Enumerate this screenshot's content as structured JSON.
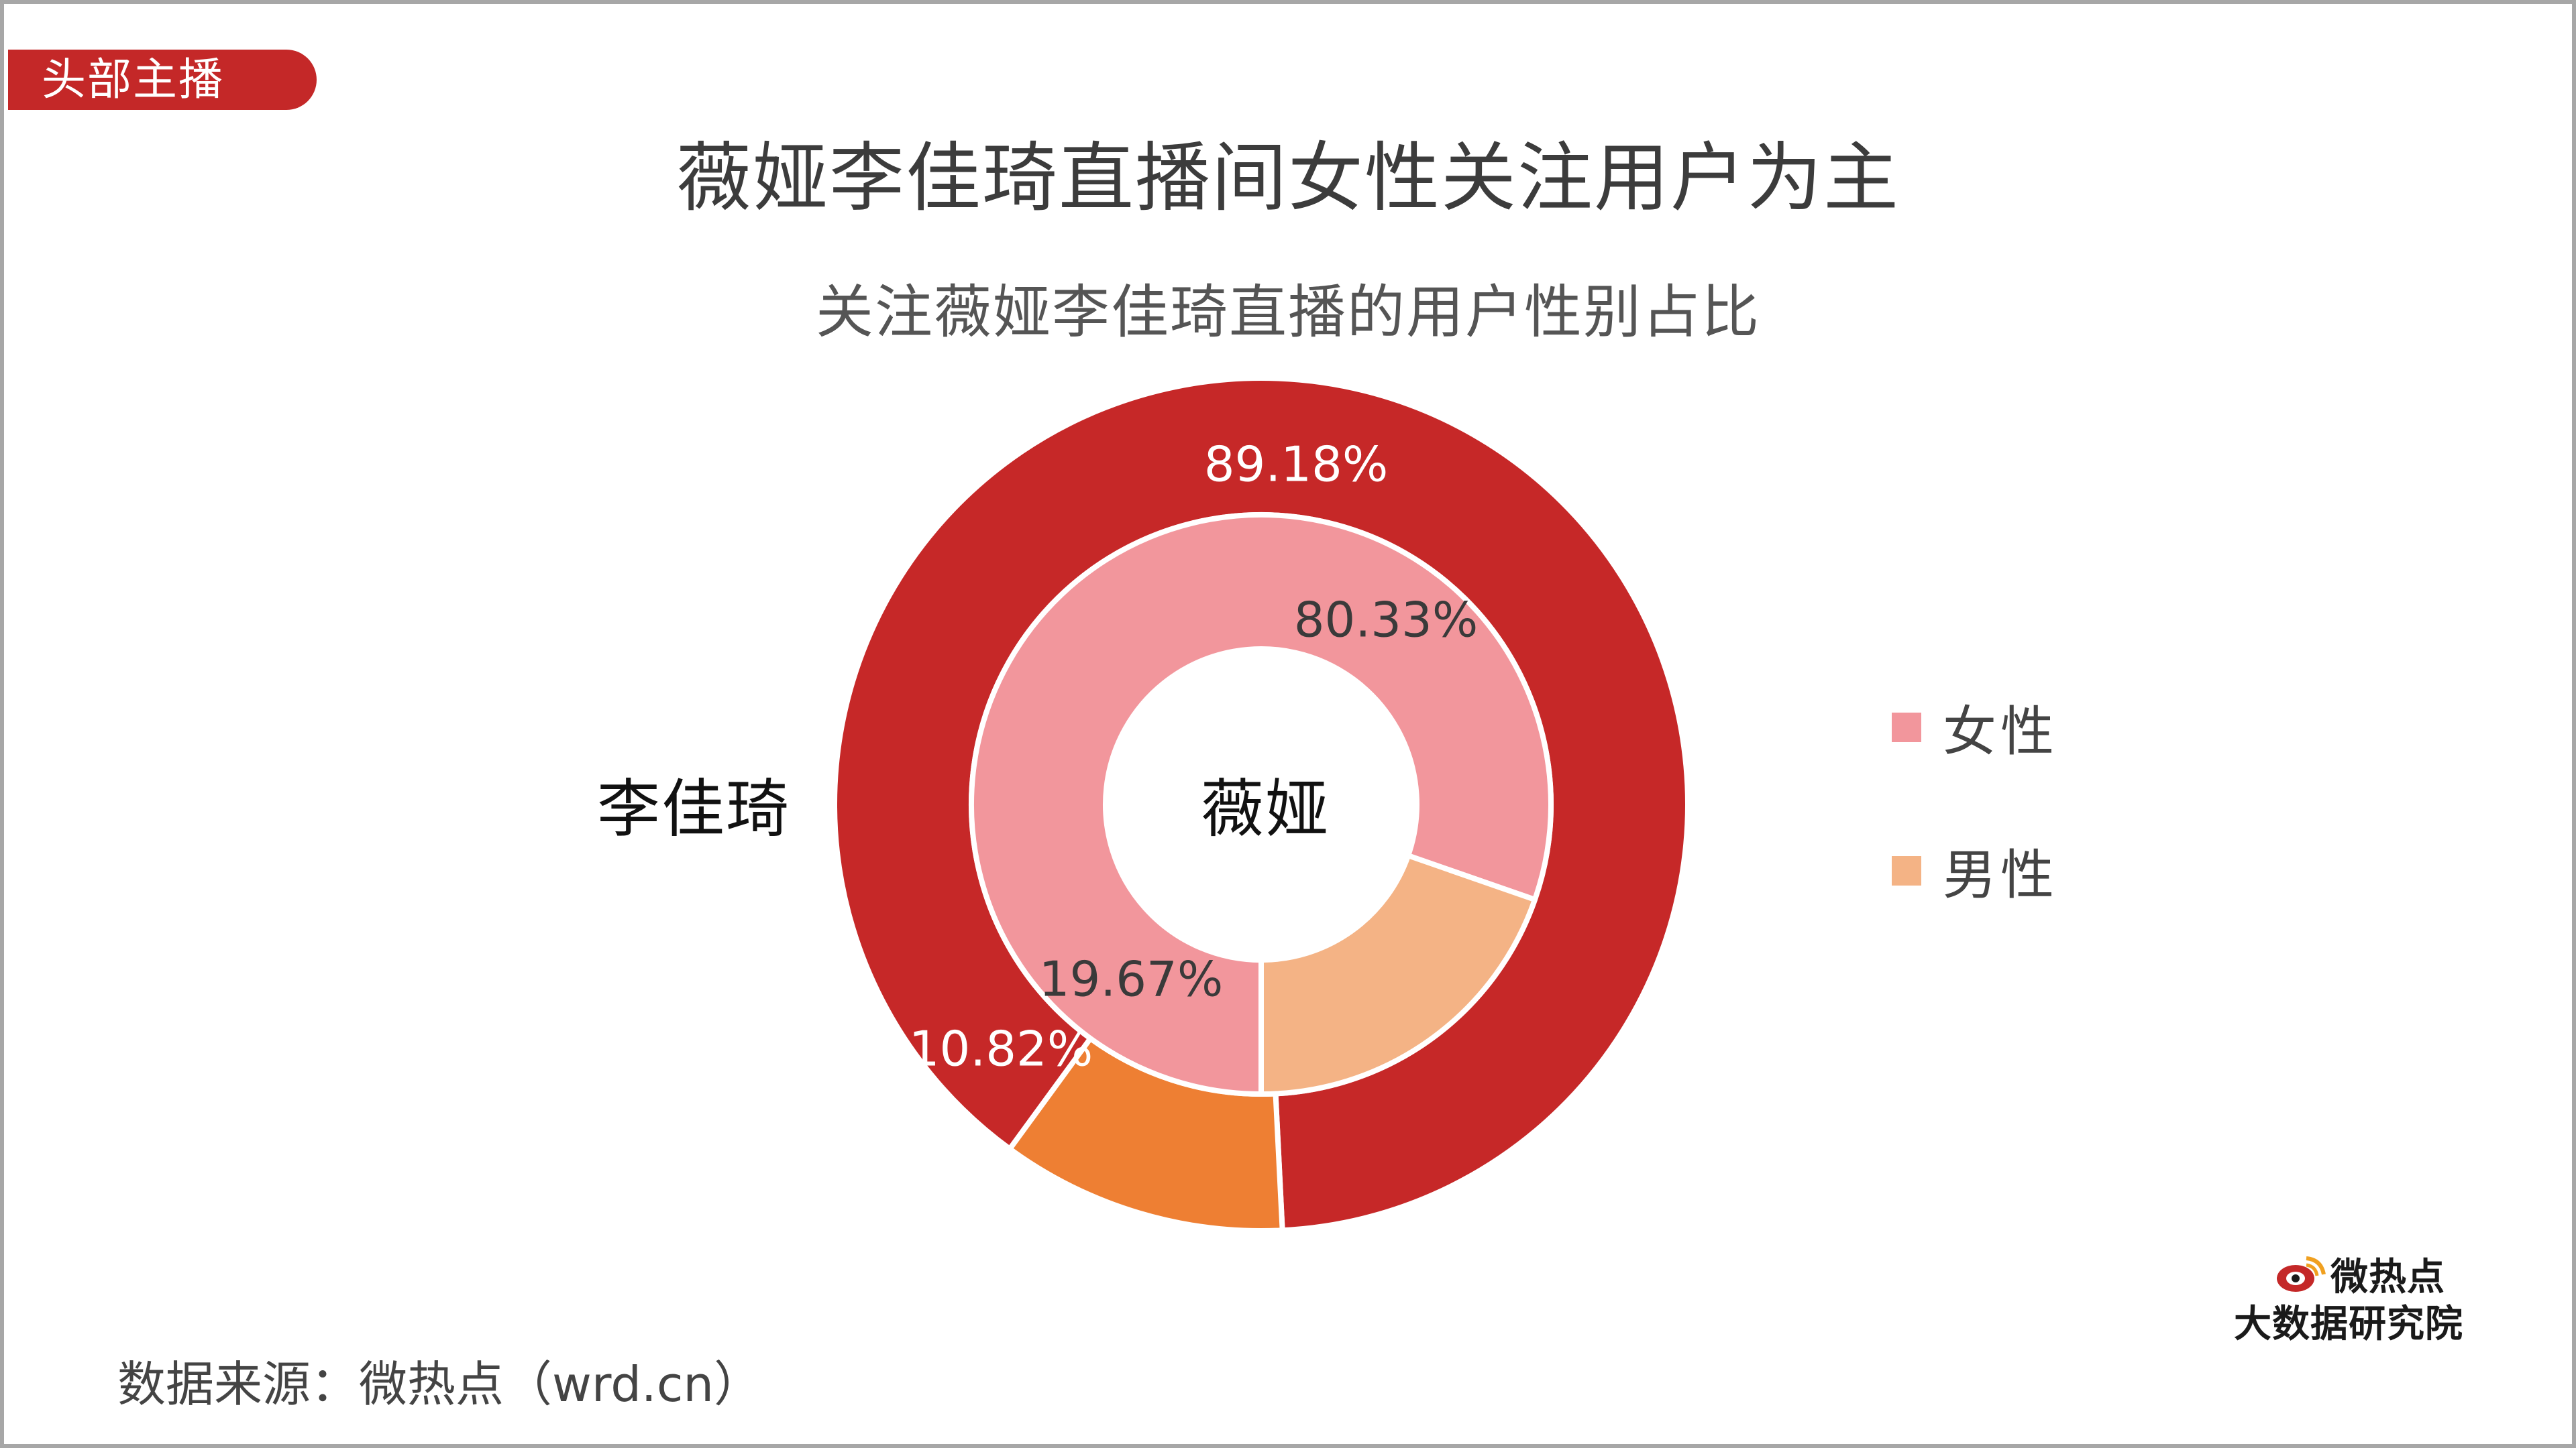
{
  "tag": "头部主播",
  "title": "薇娅李佳琦直播间女性关注用户为主",
  "subtitle": "关注薇娅李佳琦直播的用户性别占比",
  "source": "数据来源：微热点（wrd.cn）",
  "logo": {
    "top": "微热点",
    "bottom": "大数据研究院"
  },
  "colors": {
    "tag": "#c42828",
    "outer_female": "#c62828",
    "outer_male": "#ee7f33",
    "inner_female": "#f2969c",
    "inner_male": "#f4b385",
    "logo_red": "#c42828"
  },
  "chart_data": {
    "type": "pie",
    "variant": "nested-donut",
    "title": "关注薇娅李佳琦直播的用户性别占比",
    "legend": {
      "position": "right",
      "entries": [
        "女性",
        "男性"
      ]
    },
    "rings": [
      {
        "name": "李佳琦",
        "ring": "outer",
        "slices": [
          {
            "label": "女性",
            "value": 89.18,
            "display": "89.18%"
          },
          {
            "label": "男性",
            "value": 10.82,
            "display": "10.82%"
          }
        ]
      },
      {
        "name": "薇娅",
        "ring": "inner",
        "slices": [
          {
            "label": "女性",
            "value": 80.33,
            "display": "80.33%"
          },
          {
            "label": "男性",
            "value": 19.67,
            "display": "19.67%"
          }
        ]
      }
    ]
  }
}
